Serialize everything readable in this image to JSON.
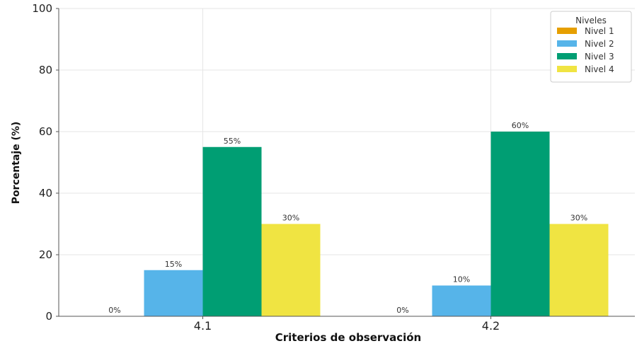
{
  "chart_data": {
    "type": "bar",
    "categories": [
      "4.1",
      "4.2"
    ],
    "series": [
      {
        "name": "Nivel 1",
        "values": [
          0,
          0
        ],
        "color": "#E69F00",
        "labels": [
          "0%",
          "0%"
        ]
      },
      {
        "name": "Nivel 2",
        "values": [
          15,
          10
        ],
        "color": "#56B4E9",
        "labels": [
          "15%",
          "10%"
        ]
      },
      {
        "name": "Nivel 3",
        "values": [
          55,
          60
        ],
        "color": "#009E73",
        "labels": [
          "55%",
          "60%"
        ]
      },
      {
        "name": "Nivel 4",
        "values": [
          30,
          30
        ],
        "color": "#F0E442",
        "labels": [
          "30%",
          "30%"
        ]
      }
    ],
    "title": "",
    "xlabel": "Criterios de observación",
    "ylabel": "Porcentaje (%)",
    "ylim": [
      0,
      100
    ],
    "yticks": [
      0,
      20,
      40,
      60,
      80,
      100
    ],
    "grid": true,
    "legend": {
      "title": "Niveles",
      "placement": "top-right"
    }
  }
}
